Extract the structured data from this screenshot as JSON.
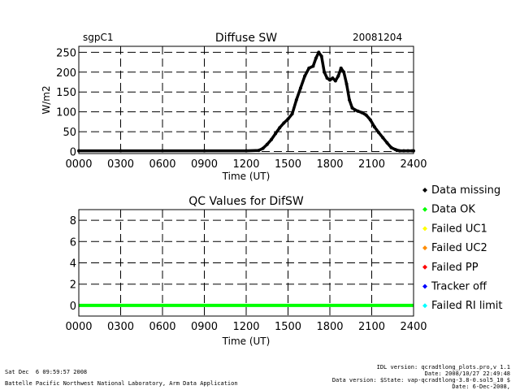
{
  "footer": {
    "datetime": "Sat Dec  6 09:59:57 2008",
    "institution": "Battelle Pacific Northwest National Laboratory, Arm Data Application",
    "idl_version": "IDL version: qcradtlong_plots.pro,v 1.1",
    "idl_date": "Date: 2008/10/27 22:49:48",
    "data_version": "Data version: $State: vap-qcradtlong-3.8-0.sol5_10 $",
    "data_date": "Date: 6-Dec-2008,"
  },
  "legend": {
    "items": [
      {
        "label": "Data missing",
        "color": "#000000"
      },
      {
        "label": "Data OK",
        "color": "#00ff00"
      },
      {
        "label": "Failed UC1",
        "color": "#ffff00"
      },
      {
        "label": "Failed UC2",
        "color": "#ff8c00"
      },
      {
        "label": "Failed PP",
        "color": "#ff0000"
      },
      {
        "label": "Tracker off",
        "color": "#0000ff"
      },
      {
        "label": "Failed RI limit",
        "color": "#00ffff"
      }
    ]
  },
  "chart_data": [
    {
      "type": "scatter",
      "site": "sgpC1",
      "title": "Diffuse SW",
      "date": "20081204",
      "xlabel": "Time (UT)",
      "ylabel": "W/m2",
      "xlim": [
        0,
        2400
      ],
      "ylim": [
        -5,
        265
      ],
      "xticks": [
        0,
        300,
        600,
        900,
        1200,
        1500,
        1800,
        2100,
        2400
      ],
      "xtick_labels": [
        "0000",
        "0300",
        "0600",
        "0900",
        "1200",
        "1500",
        "1800",
        "2100",
        "2400"
      ],
      "yticks": [
        0,
        50,
        100,
        150,
        200,
        250
      ],
      "ytick_labels": [
        "0",
        "50",
        "100",
        "150",
        "200",
        "250"
      ],
      "grid": true,
      "color": "#000000",
      "series": [
        {
          "name": "Diffuse SW",
          "x": [
            0,
            300,
            600,
            900,
            1200,
            1290,
            1320,
            1350,
            1380,
            1410,
            1440,
            1470,
            1500,
            1530,
            1560,
            1590,
            1620,
            1650,
            1680,
            1700,
            1720,
            1740,
            1760,
            1780,
            1800,
            1820,
            1840,
            1860,
            1880,
            1900,
            1920,
            1940,
            1960,
            1980,
            2000,
            2030,
            2060,
            2090,
            2120,
            2150,
            2180,
            2210,
            2240,
            2270,
            2300,
            2330,
            2360,
            2390,
            2400
          ],
          "y": [
            2,
            2,
            2,
            2,
            2,
            3,
            8,
            18,
            30,
            45,
            60,
            72,
            82,
            95,
            130,
            160,
            190,
            210,
            215,
            235,
            250,
            240,
            200,
            185,
            180,
            185,
            178,
            190,
            210,
            200,
            170,
            130,
            110,
            105,
            102,
            98,
            92,
            80,
            62,
            48,
            35,
            22,
            10,
            5,
            2,
            2,
            2,
            2,
            2
          ]
        }
      ]
    },
    {
      "type": "line",
      "title": "QC Values for DifSW",
      "xlabel": "Time (UT)",
      "ylabel": "",
      "xlim": [
        0,
        2400
      ],
      "ylim": [
        -1,
        9
      ],
      "xticks": [
        0,
        300,
        600,
        900,
        1200,
        1500,
        1800,
        2100,
        2400
      ],
      "xtick_labels": [
        "0000",
        "0300",
        "0600",
        "0900",
        "1200",
        "1500",
        "1800",
        "2100",
        "2400"
      ],
      "yticks": [
        0,
        2,
        4,
        6,
        8
      ],
      "ytick_labels": [
        "0",
        "2",
        "4",
        "6",
        "8"
      ],
      "grid": true,
      "series": [
        {
          "name": "QC",
          "color": "#00ff00",
          "x": [
            0,
            2400
          ],
          "y": [
            0,
            0
          ]
        }
      ]
    }
  ]
}
